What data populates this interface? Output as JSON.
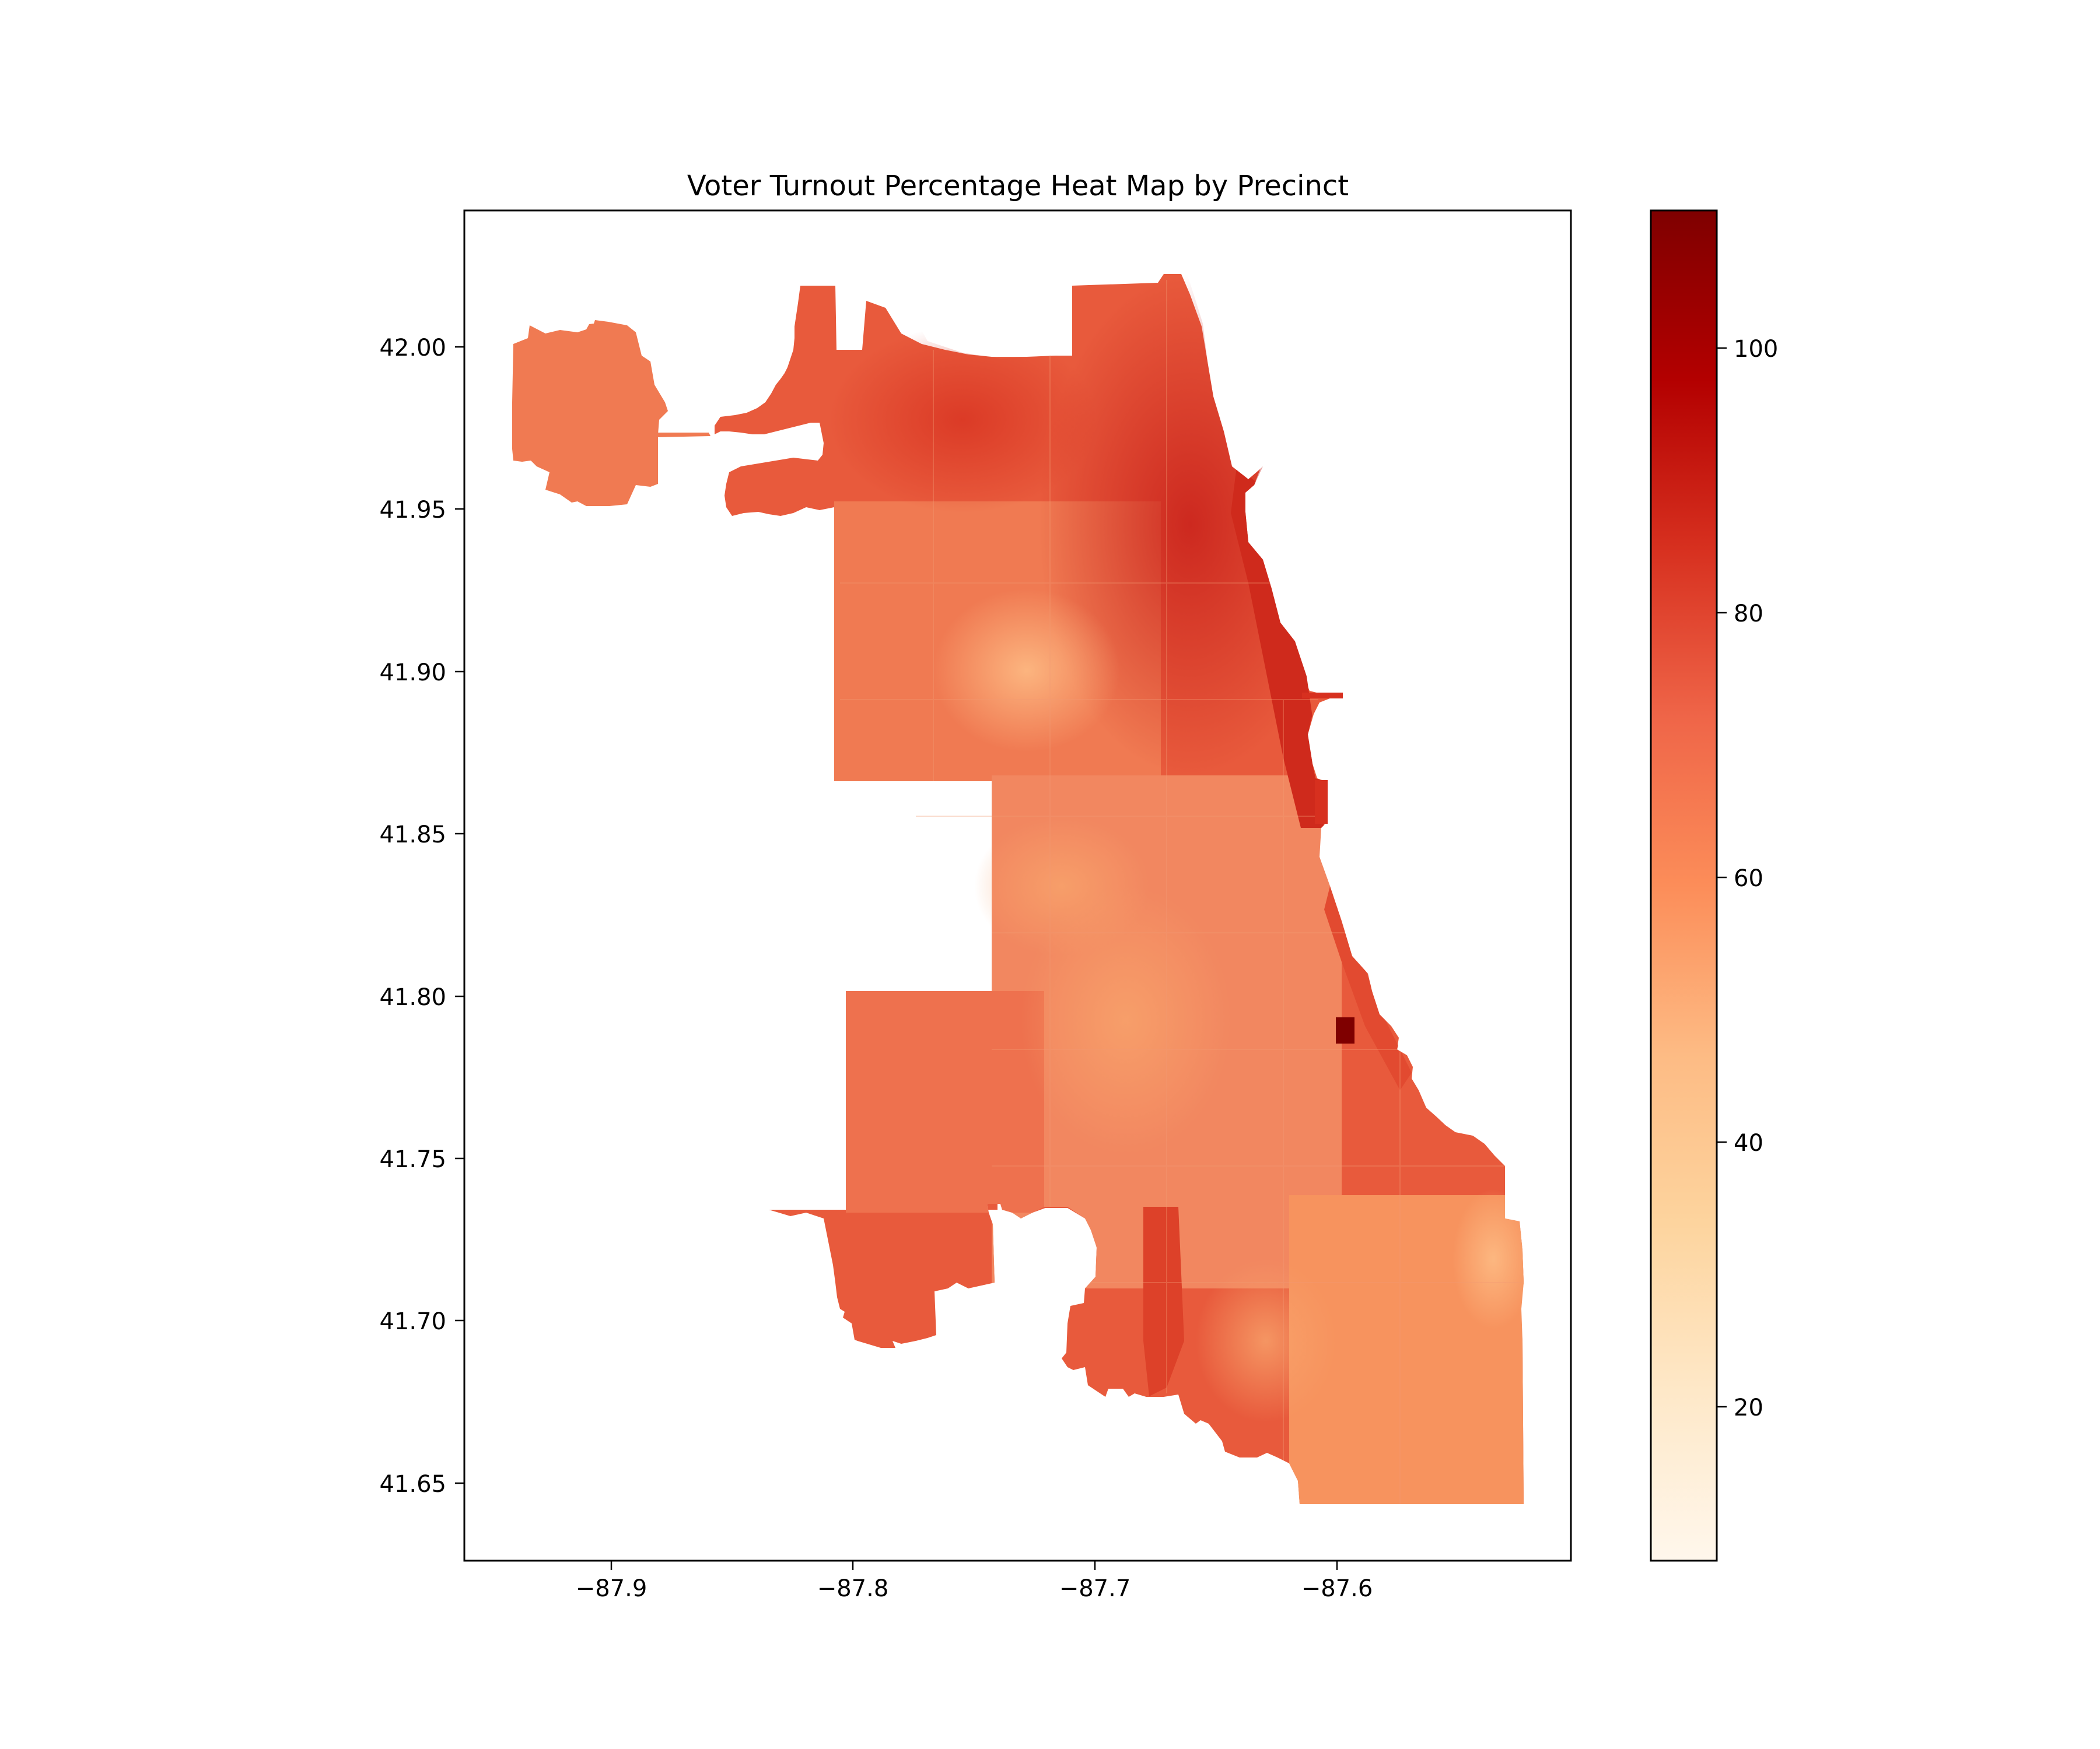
{
  "title": "Voter Turnout Percentage Heat Map by Precinct",
  "map": {
    "region": "precincts",
    "x_ticks": [
      "−87.9",
      "−87.8",
      "−87.7",
      "−87.6"
    ],
    "y_ticks": [
      "42.00",
      "41.95",
      "41.90",
      "41.85",
      "41.80",
      "41.75",
      "41.70",
      "41.65"
    ],
    "x_range": [
      -87.96,
      -87.5
    ],
    "y_range": [
      41.625,
      42.04
    ],
    "colormap": "OrRd",
    "colorbar": {
      "ticks": [
        "100",
        "80",
        "60",
        "40",
        "20"
      ],
      "range": [
        8,
        110
      ],
      "colors": [
        "#fff7ec",
        "#fee8c8",
        "#fdd49e",
        "#fdbb84",
        "#fc8d59",
        "#ef6548",
        "#d7301f",
        "#b30000",
        "#7f0000"
      ]
    },
    "dominant_colors": {
      "north_lakefront": "#d7301f",
      "northwest": "#e34a33",
      "west_side": "#f26c4a",
      "south_side": "#f4845c",
      "far_southeast": "#f7935e",
      "low_pocket": "#fdbb84",
      "hotspot": "#7f0000"
    }
  }
}
